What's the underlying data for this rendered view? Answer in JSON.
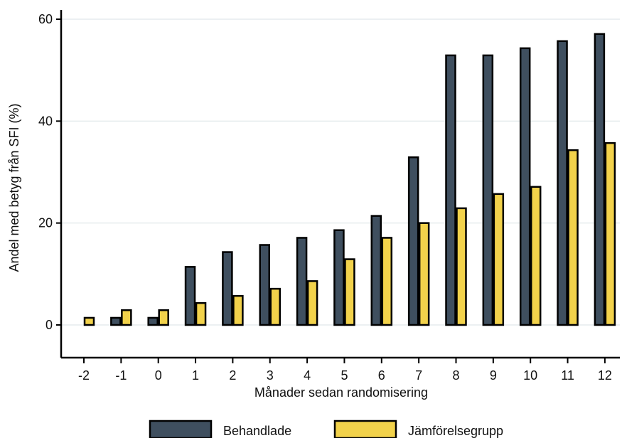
{
  "chart_data": {
    "type": "bar",
    "xlabel": "Månader sedan randomisering",
    "ylabel": "Andel med betyg från SFI (%)",
    "categories": [
      "-2",
      "-1",
      "0",
      "1",
      "2",
      "3",
      "4",
      "5",
      "6",
      "7",
      "8",
      "9",
      "10",
      "11",
      "12"
    ],
    "series": [
      {
        "name": "Behandlade",
        "color": "#3f4f5f",
        "values": [
          0,
          1.4,
          1.4,
          11.4,
          14.3,
          15.7,
          17.1,
          18.6,
          21.4,
          32.9,
          52.9,
          52.9,
          54.3,
          55.7,
          57.1
        ]
      },
      {
        "name": "Jämförelsegrupp",
        "color": "#f2d24b",
        "values": [
          1.4,
          2.9,
          2.9,
          4.3,
          5.7,
          7.1,
          8.6,
          12.9,
          17.1,
          20.0,
          22.9,
          25.7,
          27.1,
          34.3,
          35.7
        ]
      }
    ],
    "ylim": [
      -7,
      62
    ],
    "yticks": [
      0,
      20,
      40,
      60
    ],
    "grid": true,
    "legend": "bottom"
  }
}
